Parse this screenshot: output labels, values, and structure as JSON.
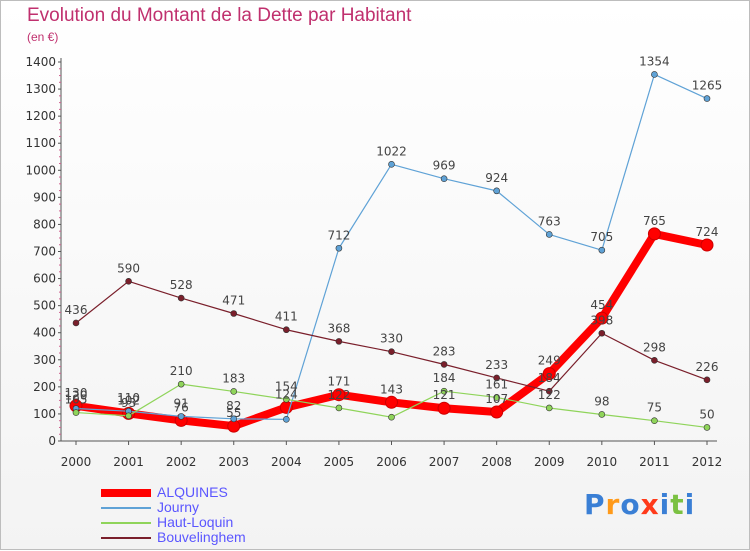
{
  "title": "Evolution du Montant de la Dette par Habitant",
  "unit": "(en €)",
  "logo_text": "Proxiti",
  "logo_colors": [
    "#3a7fd5",
    "#ff9a1a",
    "#3a7fd5",
    "#ff3a1a",
    "#3a7fd5",
    "#7bc142",
    "#3a7fd5"
  ],
  "chart_data": {
    "type": "line",
    "title": "Evolution du Montant de la Dette par Habitant",
    "ylabel": "(en €)",
    "xlabel": "",
    "ylim": [
      0,
      1400
    ],
    "yticks": [
      0,
      100,
      200,
      300,
      400,
      500,
      600,
      700,
      800,
      900,
      1000,
      1100,
      1200,
      1300,
      1400
    ],
    "categories": [
      "2000",
      "2001",
      "2002",
      "2003",
      "2004",
      "2005",
      "2006",
      "2007",
      "2008",
      "2009",
      "2010",
      "2011",
      "2012"
    ],
    "grid": false,
    "legend_position": "bottom-left",
    "series": [
      {
        "name": "ALQUINES",
        "color": "#ff0000",
        "width": 8,
        "values": [
          130,
          102,
          76,
          55,
          124,
          171,
          143,
          121,
          107,
          249,
          454,
          765,
          724
        ]
      },
      {
        "name": "Journy",
        "color": "#5fa2d6",
        "width": 1.2,
        "values": [
          120,
          110,
          91,
          82,
          80,
          712,
          1022,
          969,
          924,
          763,
          705,
          1354,
          1265
        ]
      },
      {
        "name": "Haut-Loquin",
        "color": "#8fd45a",
        "width": 1.2,
        "values": [
          105,
          93,
          210,
          183,
          154,
          122,
          88,
          184,
          161,
          122,
          98,
          75,
          50
        ]
      },
      {
        "name": "Bouvelinghem",
        "color": "#7a1f2b",
        "width": 1.2,
        "values": [
          436,
          590,
          528,
          471,
          411,
          368,
          330,
          283,
          233,
          184,
          398,
          298,
          226
        ]
      }
    ],
    "data_labels": [
      {
        "series": 0,
        "values": [
          130,
          102,
          76,
          55,
          124,
          171,
          143,
          121,
          107,
          249,
          454,
          765,
          724
        ]
      },
      {
        "series": 1,
        "values": [
          120,
          110,
          91,
          82,
          null,
          712,
          1022,
          969,
          924,
          763,
          705,
          1354,
          1265
        ]
      },
      {
        "series": 2,
        "values": [
          105,
          93,
          210,
          183,
          154,
          122,
          null,
          184,
          161,
          122,
          98,
          75,
          50
        ]
      },
      {
        "series": 3,
        "values": [
          436,
          590,
          528,
          471,
          411,
          368,
          330,
          283,
          233,
          184,
          398,
          298,
          226
        ]
      }
    ]
  }
}
